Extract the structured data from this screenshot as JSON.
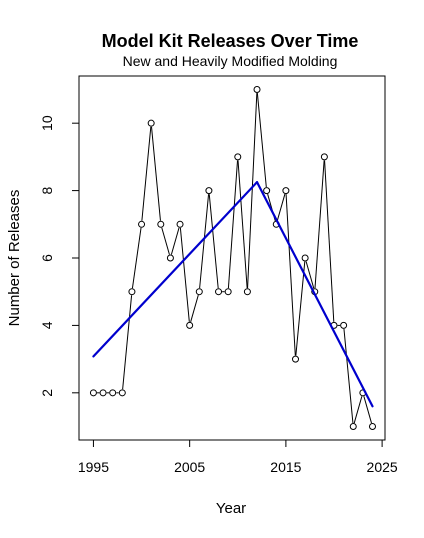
{
  "chart_data": {
    "type": "line",
    "title": "Model Kit Releases Over Time",
    "subtitle": "New and Heavily Modified Molding",
    "xlabel": "Year",
    "ylabel": "Number of Releases",
    "xlim": [
      1993.5,
      2025.3
    ],
    "ylim": [
      0.6,
      11.4
    ],
    "x_ticks": [
      1995,
      2005,
      2015,
      2025
    ],
    "y_ticks": [
      2,
      4,
      6,
      8,
      10
    ],
    "grid": false,
    "legend": "none",
    "series": [
      {
        "x": [
          1995,
          1996,
          1997,
          1998,
          1999,
          2000,
          2001,
          2002,
          2003,
          2004,
          2005,
          2006,
          2007,
          2008,
          2009,
          2010,
          2011,
          2012,
          2013,
          2014,
          2015,
          2016,
          2017,
          2018,
          2019,
          2020,
          2021,
          2022,
          2023,
          2024
        ],
        "y": [
          2,
          2,
          2,
          2,
          5,
          7,
          10,
          7,
          6,
          7,
          4,
          5,
          8,
          5,
          5,
          9,
          5,
          11,
          8,
          7,
          8,
          3,
          6,
          5,
          9,
          4,
          4,
          1,
          2,
          1
        ],
        "color": "#000000",
        "marker": "open-circle"
      }
    ],
    "trend_lines": [
      {
        "x": [
          1995,
          2012
        ],
        "y": [
          3.08,
          8.25
        ],
        "color": "#0000cd"
      },
      {
        "x": [
          2012,
          2024
        ],
        "y": [
          8.25,
          1.6
        ],
        "color": "#0000cd"
      }
    ]
  }
}
